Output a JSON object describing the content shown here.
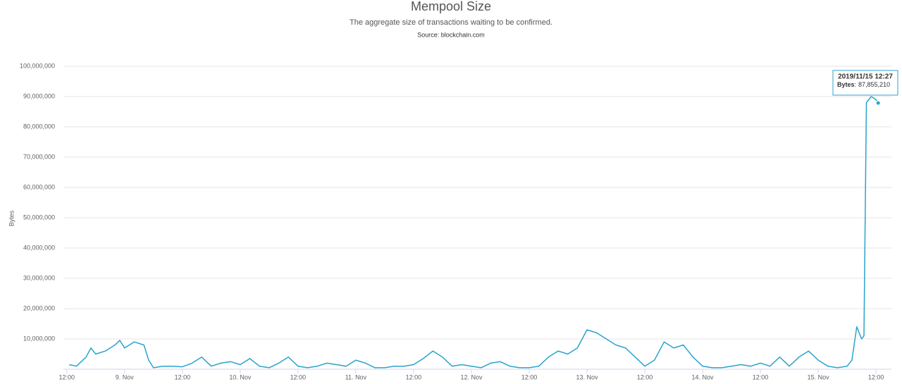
{
  "chart_data": {
    "type": "line",
    "title": "Mempool Size",
    "subtitle": "The aggregate size of transactions waiting to be confirmed.",
    "source": "Source: blockchain.com",
    "y_label": "Bytes",
    "grid": true,
    "ylim": [
      0,
      100000000
    ],
    "yticks": [
      {
        "value": 10000000,
        "label": "10,000,000"
      },
      {
        "value": 20000000,
        "label": "20,000,000"
      },
      {
        "value": 30000000,
        "label": "30,000,000"
      },
      {
        "value": 40000000,
        "label": "40,000,000"
      },
      {
        "value": 50000000,
        "label": "50,000,000"
      },
      {
        "value": 60000000,
        "label": "60,000,000"
      },
      {
        "value": 70000000,
        "label": "70,000,000"
      },
      {
        "value": 80000000,
        "label": "80,000,000"
      },
      {
        "value": 90000000,
        "label": "90,000,000"
      },
      {
        "value": 100000000,
        "label": "100,000,000"
      }
    ],
    "xlim": [
      "2019/11/08 11:18",
      "2019/11/15 15:12"
    ],
    "xticks": [
      {
        "value": "2019/11/08 12:00",
        "label": "12:00"
      },
      {
        "value": "2019/11/09 00:00",
        "label": "9. Nov"
      },
      {
        "value": "2019/11/09 12:00",
        "label": "12:00"
      },
      {
        "value": "2019/11/10 00:00",
        "label": "10. Nov"
      },
      {
        "value": "2019/11/10 12:00",
        "label": "12:00"
      },
      {
        "value": "2019/11/11 00:00",
        "label": "11. Nov"
      },
      {
        "value": "2019/11/11 12:00",
        "label": "12:00"
      },
      {
        "value": "2019/11/12 00:00",
        "label": "12. Nov"
      },
      {
        "value": "2019/11/12 12:00",
        "label": "12:00"
      },
      {
        "value": "2019/11/13 00:00",
        "label": "13. Nov"
      },
      {
        "value": "2019/11/13 12:00",
        "label": "12:00"
      },
      {
        "value": "2019/11/14 00:00",
        "label": "14. Nov"
      },
      {
        "value": "2019/11/14 12:00",
        "label": "12:00"
      },
      {
        "value": "2019/11/15 00:00",
        "label": "15. Nov"
      },
      {
        "value": "2019/11/15 12:00",
        "label": "12:00"
      }
    ],
    "x": [
      "2019/11/08 12:30",
      "2019/11/08 14:00",
      "2019/11/08 16:00",
      "2019/11/08 17:00",
      "2019/11/08 18:00",
      "2019/11/08 20:00",
      "2019/11/08 22:00",
      "2019/11/08 23:00",
      "2019/11/09 00:00",
      "2019/11/09 02:00",
      "2019/11/09 04:00",
      "2019/11/09 05:00",
      "2019/11/09 06:00",
      "2019/11/09 08:00",
      "2019/11/09 10:00",
      "2019/11/09 12:00",
      "2019/11/09 14:00",
      "2019/11/09 16:00",
      "2019/11/09 18:00",
      "2019/11/09 20:00",
      "2019/11/09 22:00",
      "2019/11/10 00:00",
      "2019/11/10 02:00",
      "2019/11/10 04:00",
      "2019/11/10 06:00",
      "2019/11/10 08:00",
      "2019/11/10 10:00",
      "2019/11/10 12:00",
      "2019/11/10 14:00",
      "2019/11/10 16:00",
      "2019/11/10 18:00",
      "2019/11/10 20:00",
      "2019/11/10 22:00",
      "2019/11/11 00:00",
      "2019/11/11 02:00",
      "2019/11/11 04:00",
      "2019/11/11 06:00",
      "2019/11/11 08:00",
      "2019/11/11 10:00",
      "2019/11/11 12:00",
      "2019/11/11 14:00",
      "2019/11/11 16:00",
      "2019/11/11 18:00",
      "2019/11/11 20:00",
      "2019/11/11 22:00",
      "2019/11/12 00:00",
      "2019/11/12 02:00",
      "2019/11/12 04:00",
      "2019/11/12 06:00",
      "2019/11/12 08:00",
      "2019/11/12 10:00",
      "2019/11/12 12:00",
      "2019/11/12 14:00",
      "2019/11/12 16:00",
      "2019/11/12 18:00",
      "2019/11/12 20:00",
      "2019/11/12 22:00",
      "2019/11/13 00:00",
      "2019/11/13 02:00",
      "2019/11/13 04:00",
      "2019/11/13 06:00",
      "2019/11/13 08:00",
      "2019/11/13 10:00",
      "2019/11/13 12:00",
      "2019/11/13 14:00",
      "2019/11/13 16:00",
      "2019/11/13 18:00",
      "2019/11/13 20:00",
      "2019/11/13 22:00",
      "2019/11/14 00:00",
      "2019/11/14 02:00",
      "2019/11/14 04:00",
      "2019/11/14 06:00",
      "2019/11/14 08:00",
      "2019/11/14 10:00",
      "2019/11/14 12:00",
      "2019/11/14 14:00",
      "2019/11/14 16:00",
      "2019/11/14 18:00",
      "2019/11/14 20:00",
      "2019/11/14 22:00",
      "2019/11/15 00:00",
      "2019/11/15 02:00",
      "2019/11/15 04:00",
      "2019/11/15 06:00",
      "2019/11/15 07:00",
      "2019/11/15 08:00",
      "2019/11/15 09:00",
      "2019/11/15 09:30",
      "2019/11/15 10:00",
      "2019/11/15 11:00",
      "2019/11/15 12:00",
      "2019/11/15 12:27"
    ],
    "series": [
      {
        "name": "Bytes",
        "color": "#2aa3cc",
        "values": [
          1500000,
          1000000,
          4000000,
          7000000,
          5000000,
          6000000,
          8000000,
          9500000,
          7000000,
          9000000,
          8000000,
          3000000,
          500000,
          1000000,
          1000000,
          800000,
          2000000,
          4000000,
          1000000,
          2000000,
          2500000,
          1500000,
          3500000,
          1000000,
          500000,
          2000000,
          4000000,
          1000000,
          500000,
          1000000,
          2000000,
          1500000,
          1000000,
          3000000,
          2000000,
          500000,
          500000,
          1000000,
          1000000,
          1500000,
          3500000,
          6000000,
          4000000,
          1000000,
          1500000,
          1000000,
          500000,
          2000000,
          2500000,
          1000000,
          500000,
          500000,
          1000000,
          4000000,
          6000000,
          5000000,
          7000000,
          13000000,
          12000000,
          10000000,
          8000000,
          7000000,
          4000000,
          1000000,
          3000000,
          9000000,
          7000000,
          8000000,
          4000000,
          1000000,
          500000,
          500000,
          1000000,
          1500000,
          1000000,
          2000000,
          1000000,
          4000000,
          1000000,
          4000000,
          6000000,
          3000000,
          1000000,
          500000,
          1000000,
          3000000,
          14000000,
          10000000,
          11000000,
          88000000,
          90000000,
          89000000,
          87855210
        ]
      }
    ],
    "tooltip": {
      "value_label": "87,855,210"
    }
  }
}
